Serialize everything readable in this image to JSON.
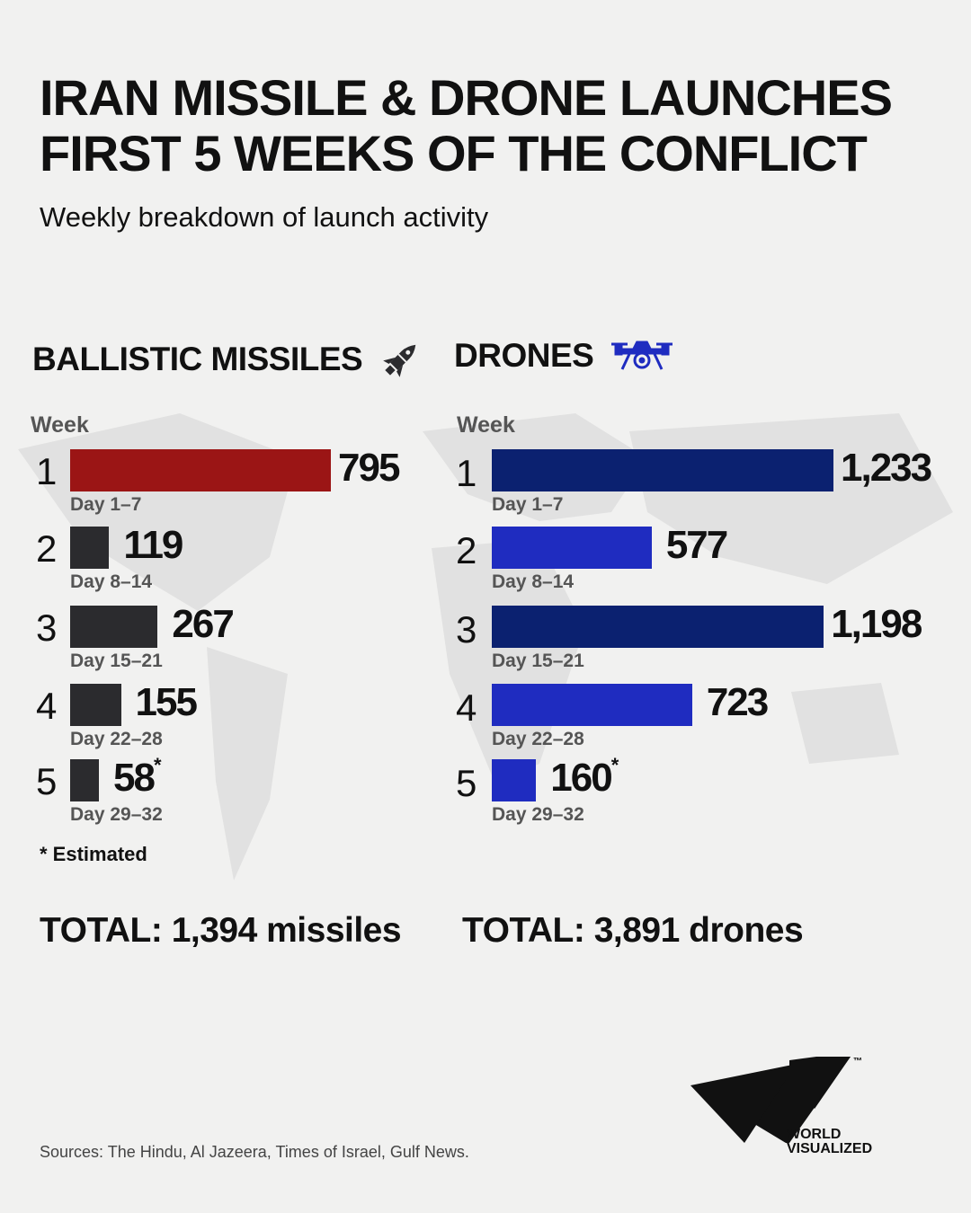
{
  "title_lines": [
    "IRAN MISSILE & DRONE LAUNCHES",
    "FIRST 5 WEEKS OF THE CONFLICT"
  ],
  "subtitle": "Weekly breakdown of launch activity",
  "chart_data": [
    {
      "type": "bar",
      "orientation": "horizontal",
      "title": "BALLISTIC MISSILES",
      "icon": "missile-icon",
      "axis_label": "Week",
      "categories": [
        "1",
        "2",
        "3",
        "4",
        "5"
      ],
      "sublabels": [
        "Day 1–7",
        "Day 8–14",
        "Day 15–21",
        "Day 22–28",
        "Day 29–32"
      ],
      "values": [
        795,
        119,
        267,
        155,
        58
      ],
      "value_labels": [
        "795",
        "119",
        "267",
        "155",
        "58"
      ],
      "estimated": [
        false,
        false,
        false,
        false,
        true
      ],
      "colors": [
        "#9b1515",
        "#2b2b2e",
        "#2b2b2e",
        "#2b2b2e",
        "#2b2b2e"
      ],
      "total": "TOTAL: 1,394 missiles"
    },
    {
      "type": "bar",
      "orientation": "horizontal",
      "title": "DRONES",
      "icon": "drone-icon",
      "axis_label": "Week",
      "categories": [
        "1",
        "2",
        "3",
        "4",
        "5"
      ],
      "sublabels": [
        "Day 1–7",
        "Day 8–14",
        "Day 15–21",
        "Day 22–28",
        "Day 29–32"
      ],
      "values": [
        1233,
        577,
        1198,
        723,
        160
      ],
      "value_labels": [
        "1,233",
        "577",
        "1,198",
        "723",
        "160"
      ],
      "estimated": [
        false,
        false,
        false,
        false,
        true
      ],
      "colors": [
        "#0b2170",
        "#1f2cc0",
        "#0b2170",
        "#1f2cc0",
        "#1f2cc0"
      ],
      "total": "TOTAL: 3,891 drones"
    }
  ],
  "note": "* Estimated",
  "sources": "Sources: The Hindu, Al Jazeera, Times of Israel, Gulf News.",
  "logo": {
    "text_lines": [
      "WORLD",
      "VISUALIZED"
    ],
    "tm": "™"
  }
}
